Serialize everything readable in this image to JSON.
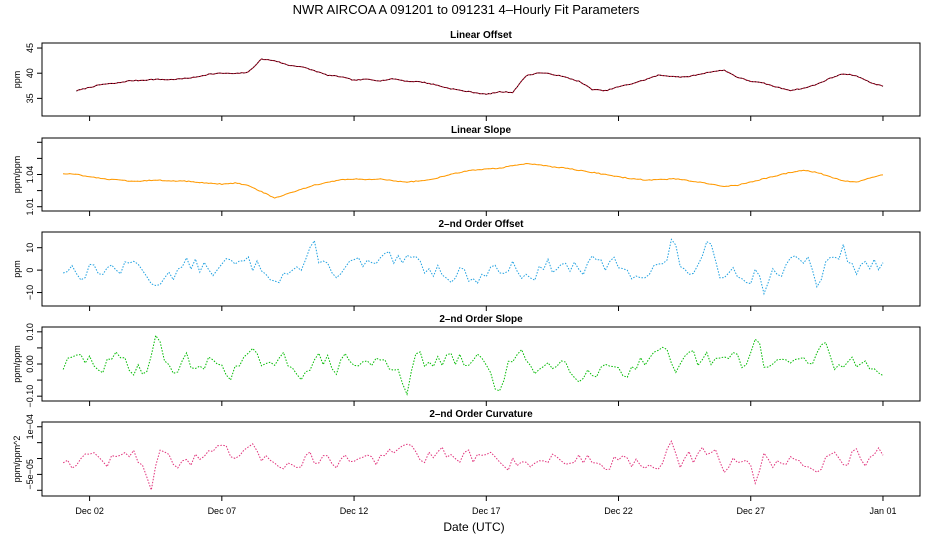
{
  "title": "NWR   AIRCOA A   091201 to 091231   4–Hourly Fit Parameters",
  "xlabel": "Date (UTC)",
  "x_ticks": [
    {
      "label": "Dec 02",
      "day": 2
    },
    {
      "label": "Dec 07",
      "day": 7
    },
    {
      "label": "Dec 12",
      "day": 12
    },
    {
      "label": "Dec 17",
      "day": 17
    },
    {
      "label": "Dec 22",
      "day": 22
    },
    {
      "label": "Dec 27",
      "day": 27
    },
    {
      "label": "Jan 01",
      "day": 32
    }
  ],
  "chart_data": [
    {
      "type": "line",
      "title": "Linear Offset",
      "ylabel": "ppm",
      "color": "#a0001e",
      "dot_color": "#000000",
      "ylim": [
        31.5,
        46
      ],
      "yticks": [
        35,
        40,
        45
      ],
      "ytick_labels": [
        "35",
        "40",
        "45"
      ],
      "x_days": [
        1.5,
        2,
        2.5,
        3,
        3.5,
        4,
        4.5,
        5,
        5.5,
        6,
        6.5,
        7,
        7.5,
        8,
        8.5,
        9,
        9.5,
        10,
        10.5,
        11,
        11.5,
        12,
        12.5,
        13,
        13.5,
        14,
        14.5,
        15,
        15.5,
        16,
        16.5,
        17,
        17.5,
        18,
        18.5,
        19,
        19.5,
        20,
        20.5,
        21,
        21.5,
        22,
        22.5,
        23,
        23.5,
        24,
        24.5,
        25,
        25.5,
        26,
        26.5,
        27,
        27.5,
        28,
        28.5,
        29,
        29.5,
        30,
        30.5,
        31,
        31.5,
        32
      ],
      "values": [
        36.5,
        37.2,
        37.8,
        38.0,
        38.5,
        38.6,
        38.8,
        38.7,
        38.9,
        39.2,
        39.8,
        40.0,
        39.9,
        40.2,
        42.8,
        42.5,
        41.6,
        41.3,
        40.5,
        39.6,
        39.3,
        38.6,
        38.8,
        38.5,
        38.9,
        38.4,
        38.3,
        37.8,
        37.1,
        36.6,
        36.2,
        35.8,
        36.3,
        36.2,
        39.5,
        40.1,
        39.8,
        39.2,
        38.4,
        36.8,
        36.5,
        37.3,
        37.9,
        38.7,
        39.6,
        39.4,
        39.2,
        39.7,
        40.3,
        40.6,
        39.2,
        38.4,
        38.0,
        37.2,
        36.6,
        37.0,
        37.8,
        39.0,
        39.9,
        39.5,
        38.2,
        37.4
      ]
    },
    {
      "type": "line",
      "title": "Linear Slope",
      "ylabel": "ppm/ppm",
      "color": "#ff9900",
      "dot_color": "#ff9900",
      "ylim": [
        1.006,
        1.074
      ],
      "yticks": [
        1.01,
        1.025,
        1.04,
        1.055,
        1.07
      ],
      "ytick_labels": [
        "1.01",
        "",
        "1.04",
        "",
        ""
      ],
      "x_days": [
        1,
        1.5,
        2,
        2.5,
        3,
        3.5,
        4,
        4.5,
        5,
        5.5,
        6,
        6.5,
        7,
        7.5,
        8,
        8.5,
        9,
        9.5,
        10,
        10.5,
        11,
        11.5,
        12,
        12.5,
        13,
        13.5,
        14,
        14.5,
        15,
        15.5,
        16,
        16.5,
        17,
        17.5,
        18,
        18.5,
        19,
        19.5,
        20,
        20.5,
        21,
        21.5,
        22,
        22.5,
        23,
        23.5,
        24,
        24.5,
        25,
        25.5,
        26,
        26.5,
        27,
        27.5,
        28,
        28.5,
        29,
        29.5,
        30,
        30.5,
        31,
        31.5,
        32
      ],
      "values": [
        1.041,
        1.04,
        1.038,
        1.036,
        1.035,
        1.034,
        1.034,
        1.035,
        1.034,
        1.034,
        1.033,
        1.032,
        1.031,
        1.032,
        1.03,
        1.024,
        1.018,
        1.022,
        1.026,
        1.03,
        1.033,
        1.035,
        1.036,
        1.035,
        1.036,
        1.034,
        1.033,
        1.034,
        1.036,
        1.039,
        1.042,
        1.044,
        1.045,
        1.046,
        1.048,
        1.05,
        1.049,
        1.047,
        1.046,
        1.044,
        1.042,
        1.04,
        1.038,
        1.036,
        1.035,
        1.035,
        1.036,
        1.035,
        1.033,
        1.031,
        1.029,
        1.03,
        1.033,
        1.036,
        1.039,
        1.042,
        1.044,
        1.042,
        1.038,
        1.034,
        1.033,
        1.037,
        1.04
      ]
    },
    {
      "type": "line",
      "title": "2–nd Order Offset",
      "ylabel": "ppm",
      "color": "#1ea0e0",
      "dot_color": "#1ea0e0",
      "ylim": [
        -16,
        17
      ],
      "yticks": [
        -10,
        0,
        10
      ],
      "ytick_labels": [
        "−10",
        "0",
        "10"
      ],
      "seed": 13,
      "noise": 4.0,
      "base": 1.0,
      "spikes": [
        [
          4.5,
          -10
        ],
        [
          10.5,
          6
        ],
        [
          16.5,
          -8
        ],
        [
          24,
          10
        ],
        [
          25.5,
          9
        ],
        [
          27.5,
          -8
        ],
        [
          29.5,
          -6
        ],
        [
          30.5,
          8
        ]
      ]
    },
    {
      "type": "line",
      "title": "2–nd Order Slope",
      "ylabel": "ppm/ppm",
      "color": "#00bb00",
      "dot_color": "#00bb00",
      "ylim": [
        -0.115,
        0.115
      ],
      "yticks": [
        -0.1,
        -0.05,
        0,
        0.05,
        0.1
      ],
      "ytick_labels": [
        "−0.10",
        "",
        "0.00",
        "",
        "0.10"
      ],
      "seed": 29,
      "noise": 0.03,
      "base": 0.0,
      "spikes": [
        [
          4.5,
          0.07
        ],
        [
          9.0,
          -0.05
        ],
        [
          14.0,
          -0.05
        ],
        [
          17.5,
          -0.08
        ],
        [
          24.2,
          -0.08
        ],
        [
          27.2,
          0.07
        ],
        [
          29.8,
          0.05
        ]
      ]
    },
    {
      "type": "line",
      "title": "2–nd Order Curvature",
      "ylabel": "ppm/ppm^2",
      "color": "#e0307a",
      "dot_color": "#e0307a",
      "ylim": [
        -0.000118,
        0.000115
      ],
      "yticks": [
        -0.0001,
        -5e-05,
        0,
        5e-05,
        0.0001
      ],
      "ytick_labels": [
        "",
        "−5e−05",
        "",
        "",
        "1e−04"
      ],
      "seed": 47,
      "noise": 2.5e-05,
      "base": 0.0,
      "spikes": [
        [
          4.3,
          -7e-05
        ],
        [
          14.0,
          5e-05
        ],
        [
          24.0,
          9e-05
        ],
        [
          26.0,
          -6e-05
        ],
        [
          27.2,
          -6e-05
        ],
        [
          29.5,
          -6e-05
        ],
        [
          31.0,
          4e-05
        ]
      ]
    }
  ]
}
